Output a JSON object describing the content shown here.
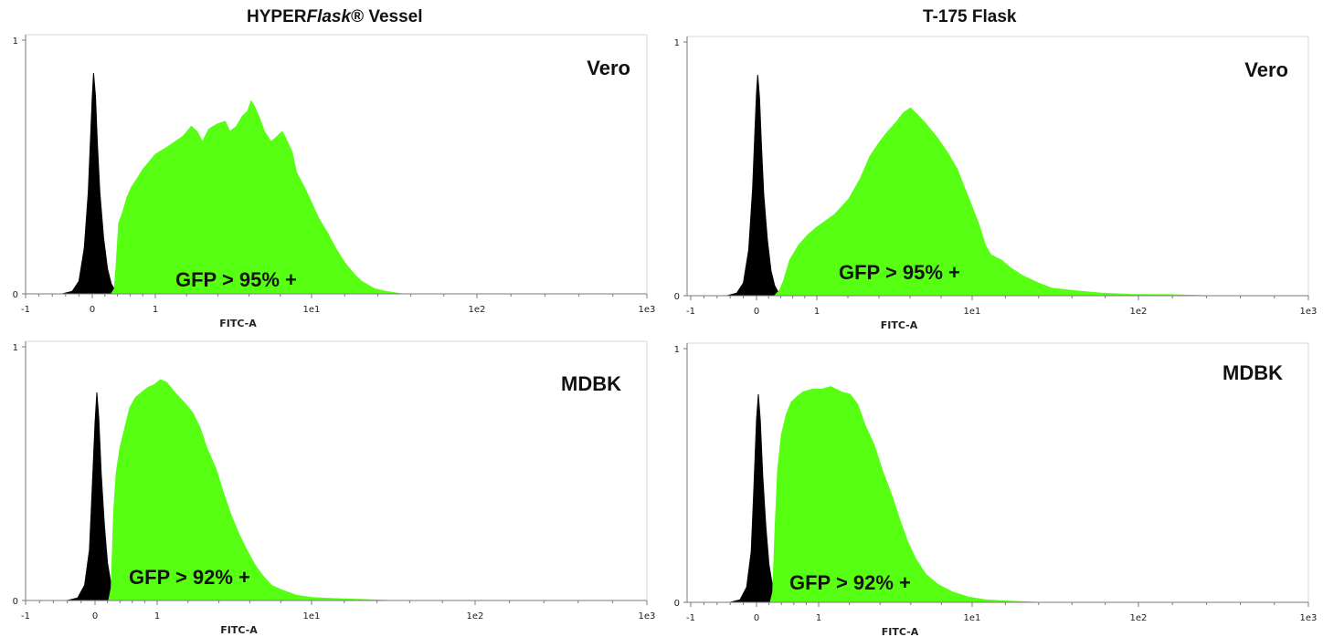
{
  "columns": {
    "left": {
      "prefix": "HYPER",
      "italic": "Flask",
      "suffix": "® Vessel"
    },
    "right": {
      "title": "T-175 Flask"
    }
  },
  "colors": {
    "gfp": "#57ff12",
    "control": "#000000",
    "axis": "#7a7a7a"
  },
  "chart_data": [
    {
      "id": "tl",
      "type": "area",
      "column": "HYPERFlask® Vessel",
      "cell_line": "Vero",
      "annotation": "GFP > 95% +",
      "xlabel": "FITC-A",
      "x_scale": "biexponential",
      "x_ticks": [
        "-1",
        "0",
        "1",
        "1e1",
        "1e2",
        "1e3"
      ],
      "y_ticks": [
        "0",
        "1"
      ],
      "ylim": [
        0,
        1
      ],
      "grid": false,
      "series": [
        {
          "color": "#000000",
          "points": [
            [
              -0.45,
              0
            ],
            [
              -0.3,
              0.01
            ],
            [
              -0.2,
              0.05
            ],
            [
              -0.12,
              0.18
            ],
            [
              -0.06,
              0.4
            ],
            [
              -0.02,
              0.65
            ],
            [
              0.0,
              0.78
            ],
            [
              0.02,
              0.87
            ],
            [
              0.05,
              0.78
            ],
            [
              0.08,
              0.6
            ],
            [
              0.12,
              0.4
            ],
            [
              0.18,
              0.22
            ],
            [
              0.24,
              0.1
            ],
            [
              0.3,
              0.04
            ],
            [
              0.37,
              0.01
            ],
            [
              0.45,
              0
            ]
          ]
        },
        {
          "color": "#57ff12",
          "points": [
            [
              0.3,
              0
            ],
            [
              0.35,
              0.02
            ],
            [
              0.38,
              0.12
            ],
            [
              0.42,
              0.28
            ],
            [
              0.48,
              0.32
            ],
            [
              0.55,
              0.38
            ],
            [
              0.62,
              0.42
            ],
            [
              0.7,
              0.45
            ],
            [
              0.8,
              0.49
            ],
            [
              0.9,
              0.52
            ],
            [
              1.0,
              0.55
            ],
            [
              1.2,
              0.58
            ],
            [
              1.5,
              0.62
            ],
            [
              1.7,
              0.66
            ],
            [
              1.85,
              0.64
            ],
            [
              2.0,
              0.6
            ],
            [
              2.2,
              0.65
            ],
            [
              2.5,
              0.67
            ],
            [
              2.8,
              0.68
            ],
            [
              3.0,
              0.64
            ],
            [
              3.3,
              0.66
            ],
            [
              3.6,
              0.7
            ],
            [
              3.9,
              0.72
            ],
            [
              4.1,
              0.76
            ],
            [
              4.3,
              0.74
            ],
            [
              4.6,
              0.7
            ],
            [
              5.0,
              0.64
            ],
            [
              5.5,
              0.6
            ],
            [
              6.0,
              0.62
            ],
            [
              6.5,
              0.64
            ],
            [
              7.0,
              0.6
            ],
            [
              7.5,
              0.56
            ],
            [
              8.0,
              0.48
            ],
            [
              9.0,
              0.42
            ],
            [
              10.0,
              0.36
            ],
            [
              11.0,
              0.3
            ],
            [
              12.5,
              0.24
            ],
            [
              14.0,
              0.18
            ],
            [
              16.0,
              0.12
            ],
            [
              18.0,
              0.08
            ],
            [
              20.0,
              0.05
            ],
            [
              24.0,
              0.02
            ],
            [
              28.0,
              0.01
            ],
            [
              35.0,
              0.0
            ]
          ]
        }
      ]
    },
    {
      "id": "tr",
      "type": "area",
      "column": "T-175 Flask",
      "cell_line": "Vero",
      "annotation": "GFP > 95% +",
      "xlabel": "FITC-A",
      "x_scale": "biexponential",
      "x_ticks": [
        "-1",
        "0",
        "1",
        "1e1",
        "1e2",
        "1e3"
      ],
      "y_ticks": [
        "0",
        "1"
      ],
      "ylim": [
        0,
        1
      ],
      "grid": false,
      "series": [
        {
          "color": "#000000",
          "points": [
            [
              -0.45,
              0
            ],
            [
              -0.3,
              0.01
            ],
            [
              -0.2,
              0.05
            ],
            [
              -0.12,
              0.18
            ],
            [
              -0.06,
              0.42
            ],
            [
              -0.02,
              0.68
            ],
            [
              0.0,
              0.8
            ],
            [
              0.02,
              0.87
            ],
            [
              0.05,
              0.78
            ],
            [
              0.08,
              0.6
            ],
            [
              0.12,
              0.4
            ],
            [
              0.18,
              0.22
            ],
            [
              0.24,
              0.1
            ],
            [
              0.3,
              0.04
            ],
            [
              0.37,
              0.01
            ],
            [
              0.45,
              0
            ]
          ]
        },
        {
          "color": "#57ff12",
          "points": [
            [
              0.3,
              0
            ],
            [
              0.38,
              0.02
            ],
            [
              0.45,
              0.06
            ],
            [
              0.55,
              0.14
            ],
            [
              0.7,
              0.2
            ],
            [
              0.85,
              0.24
            ],
            [
              1.0,
              0.27
            ],
            [
              1.3,
              0.32
            ],
            [
              1.6,
              0.38
            ],
            [
              1.9,
              0.46
            ],
            [
              2.2,
              0.55
            ],
            [
              2.5,
              0.6
            ],
            [
              2.8,
              0.64
            ],
            [
              3.2,
              0.68
            ],
            [
              3.6,
              0.72
            ],
            [
              4.0,
              0.74
            ],
            [
              4.5,
              0.71
            ],
            [
              5.0,
              0.68
            ],
            [
              6.0,
              0.62
            ],
            [
              7.0,
              0.56
            ],
            [
              8.0,
              0.5
            ],
            [
              9.0,
              0.42
            ],
            [
              10.0,
              0.35
            ],
            [
              11.0,
              0.28
            ],
            [
              12.0,
              0.2
            ],
            [
              13.0,
              0.16
            ],
            [
              15.0,
              0.14
            ],
            [
              17.0,
              0.11
            ],
            [
              20.0,
              0.08
            ],
            [
              25.0,
              0.05
            ],
            [
              30.0,
              0.03
            ],
            [
              40.0,
              0.02
            ],
            [
              60.0,
              0.01
            ],
            [
              90.0,
              0.005
            ],
            [
              150.0,
              0.004
            ],
            [
              250.0,
              0.0
            ]
          ]
        }
      ]
    },
    {
      "id": "bl",
      "type": "area",
      "column": "HYPERFlask® Vessel",
      "cell_line": "MDBK",
      "annotation": "GFP > 92% +",
      "xlabel": "FITC-A",
      "x_scale": "biexponential",
      "x_ticks": [
        "-1",
        "0",
        "1",
        "1e1",
        "1e2",
        "1e3"
      ],
      "y_ticks": [
        "0",
        "1"
      ],
      "ylim": [
        0,
        1
      ],
      "grid": false,
      "series": [
        {
          "color": "#000000",
          "points": [
            [
              -0.4,
              0
            ],
            [
              -0.25,
              0.01
            ],
            [
              -0.15,
              0.06
            ],
            [
              -0.08,
              0.2
            ],
            [
              -0.04,
              0.45
            ],
            [
              0.0,
              0.7
            ],
            [
              0.03,
              0.82
            ],
            [
              0.06,
              0.72
            ],
            [
              0.1,
              0.5
            ],
            [
              0.15,
              0.3
            ],
            [
              0.2,
              0.15
            ],
            [
              0.26,
              0.06
            ],
            [
              0.32,
              0.02
            ],
            [
              0.4,
              0
            ]
          ]
        },
        {
          "color": "#57ff12",
          "points": [
            [
              0.22,
              0
            ],
            [
              0.26,
              0.05
            ],
            [
              0.3,
              0.35
            ],
            [
              0.34,
              0.5
            ],
            [
              0.4,
              0.6
            ],
            [
              0.48,
              0.68
            ],
            [
              0.56,
              0.76
            ],
            [
              0.65,
              0.8
            ],
            [
              0.75,
              0.82
            ],
            [
              0.85,
              0.84
            ],
            [
              0.95,
              0.85
            ],
            [
              1.05,
              0.87
            ],
            [
              1.15,
              0.86
            ],
            [
              1.3,
              0.82
            ],
            [
              1.5,
              0.78
            ],
            [
              1.7,
              0.74
            ],
            [
              1.9,
              0.68
            ],
            [
              2.1,
              0.6
            ],
            [
              2.4,
              0.52
            ],
            [
              2.7,
              0.42
            ],
            [
              3.0,
              0.34
            ],
            [
              3.4,
              0.26
            ],
            [
              3.8,
              0.2
            ],
            [
              4.3,
              0.14
            ],
            [
              4.8,
              0.1
            ],
            [
              5.5,
              0.06
            ],
            [
              6.5,
              0.04
            ],
            [
              8.0,
              0.02
            ],
            [
              10.0,
              0.012
            ],
            [
              13.0,
              0.008
            ],
            [
              20.0,
              0.004
            ],
            [
              30.0,
              0.0
            ]
          ]
        }
      ]
    },
    {
      "id": "br",
      "type": "area",
      "column": "T-175 Flask",
      "cell_line": "MDBK",
      "annotation": "GFP > 92% +",
      "xlabel": "FITC-A",
      "x_scale": "biexponential",
      "x_ticks": [
        "-1",
        "0",
        "1",
        "1e1",
        "1e2",
        "1e3"
      ],
      "y_ticks": [
        "0",
        "1"
      ],
      "ylim": [
        0,
        1
      ],
      "grid": false,
      "series": [
        {
          "color": "#000000",
          "points": [
            [
              -0.4,
              0
            ],
            [
              -0.25,
              0.01
            ],
            [
              -0.15,
              0.06
            ],
            [
              -0.08,
              0.2
            ],
            [
              -0.04,
              0.45
            ],
            [
              0.0,
              0.72
            ],
            [
              0.03,
              0.82
            ],
            [
              0.06,
              0.72
            ],
            [
              0.1,
              0.5
            ],
            [
              0.15,
              0.3
            ],
            [
              0.2,
              0.15
            ],
            [
              0.26,
              0.06
            ],
            [
              0.32,
              0.02
            ],
            [
              0.4,
              0
            ]
          ]
        },
        {
          "color": "#57ff12",
          "points": [
            [
              0.22,
              0
            ],
            [
              0.26,
              0.04
            ],
            [
              0.3,
              0.3
            ],
            [
              0.34,
              0.52
            ],
            [
              0.4,
              0.66
            ],
            [
              0.48,
              0.74
            ],
            [
              0.56,
              0.79
            ],
            [
              0.65,
              0.81
            ],
            [
              0.75,
              0.83
            ],
            [
              0.9,
              0.84
            ],
            [
              1.05,
              0.84
            ],
            [
              1.2,
              0.85
            ],
            [
              1.4,
              0.83
            ],
            [
              1.6,
              0.82
            ],
            [
              1.8,
              0.78
            ],
            [
              2.0,
              0.7
            ],
            [
              2.3,
              0.62
            ],
            [
              2.6,
              0.52
            ],
            [
              3.0,
              0.42
            ],
            [
              3.4,
              0.32
            ],
            [
              3.8,
              0.24
            ],
            [
              4.3,
              0.17
            ],
            [
              5.0,
              0.11
            ],
            [
              6.0,
              0.07
            ],
            [
              7.5,
              0.04
            ],
            [
              9.5,
              0.02
            ],
            [
              12.0,
              0.01
            ],
            [
              16.0,
              0.005
            ],
            [
              25.0,
              0.0
            ]
          ]
        }
      ]
    }
  ]
}
